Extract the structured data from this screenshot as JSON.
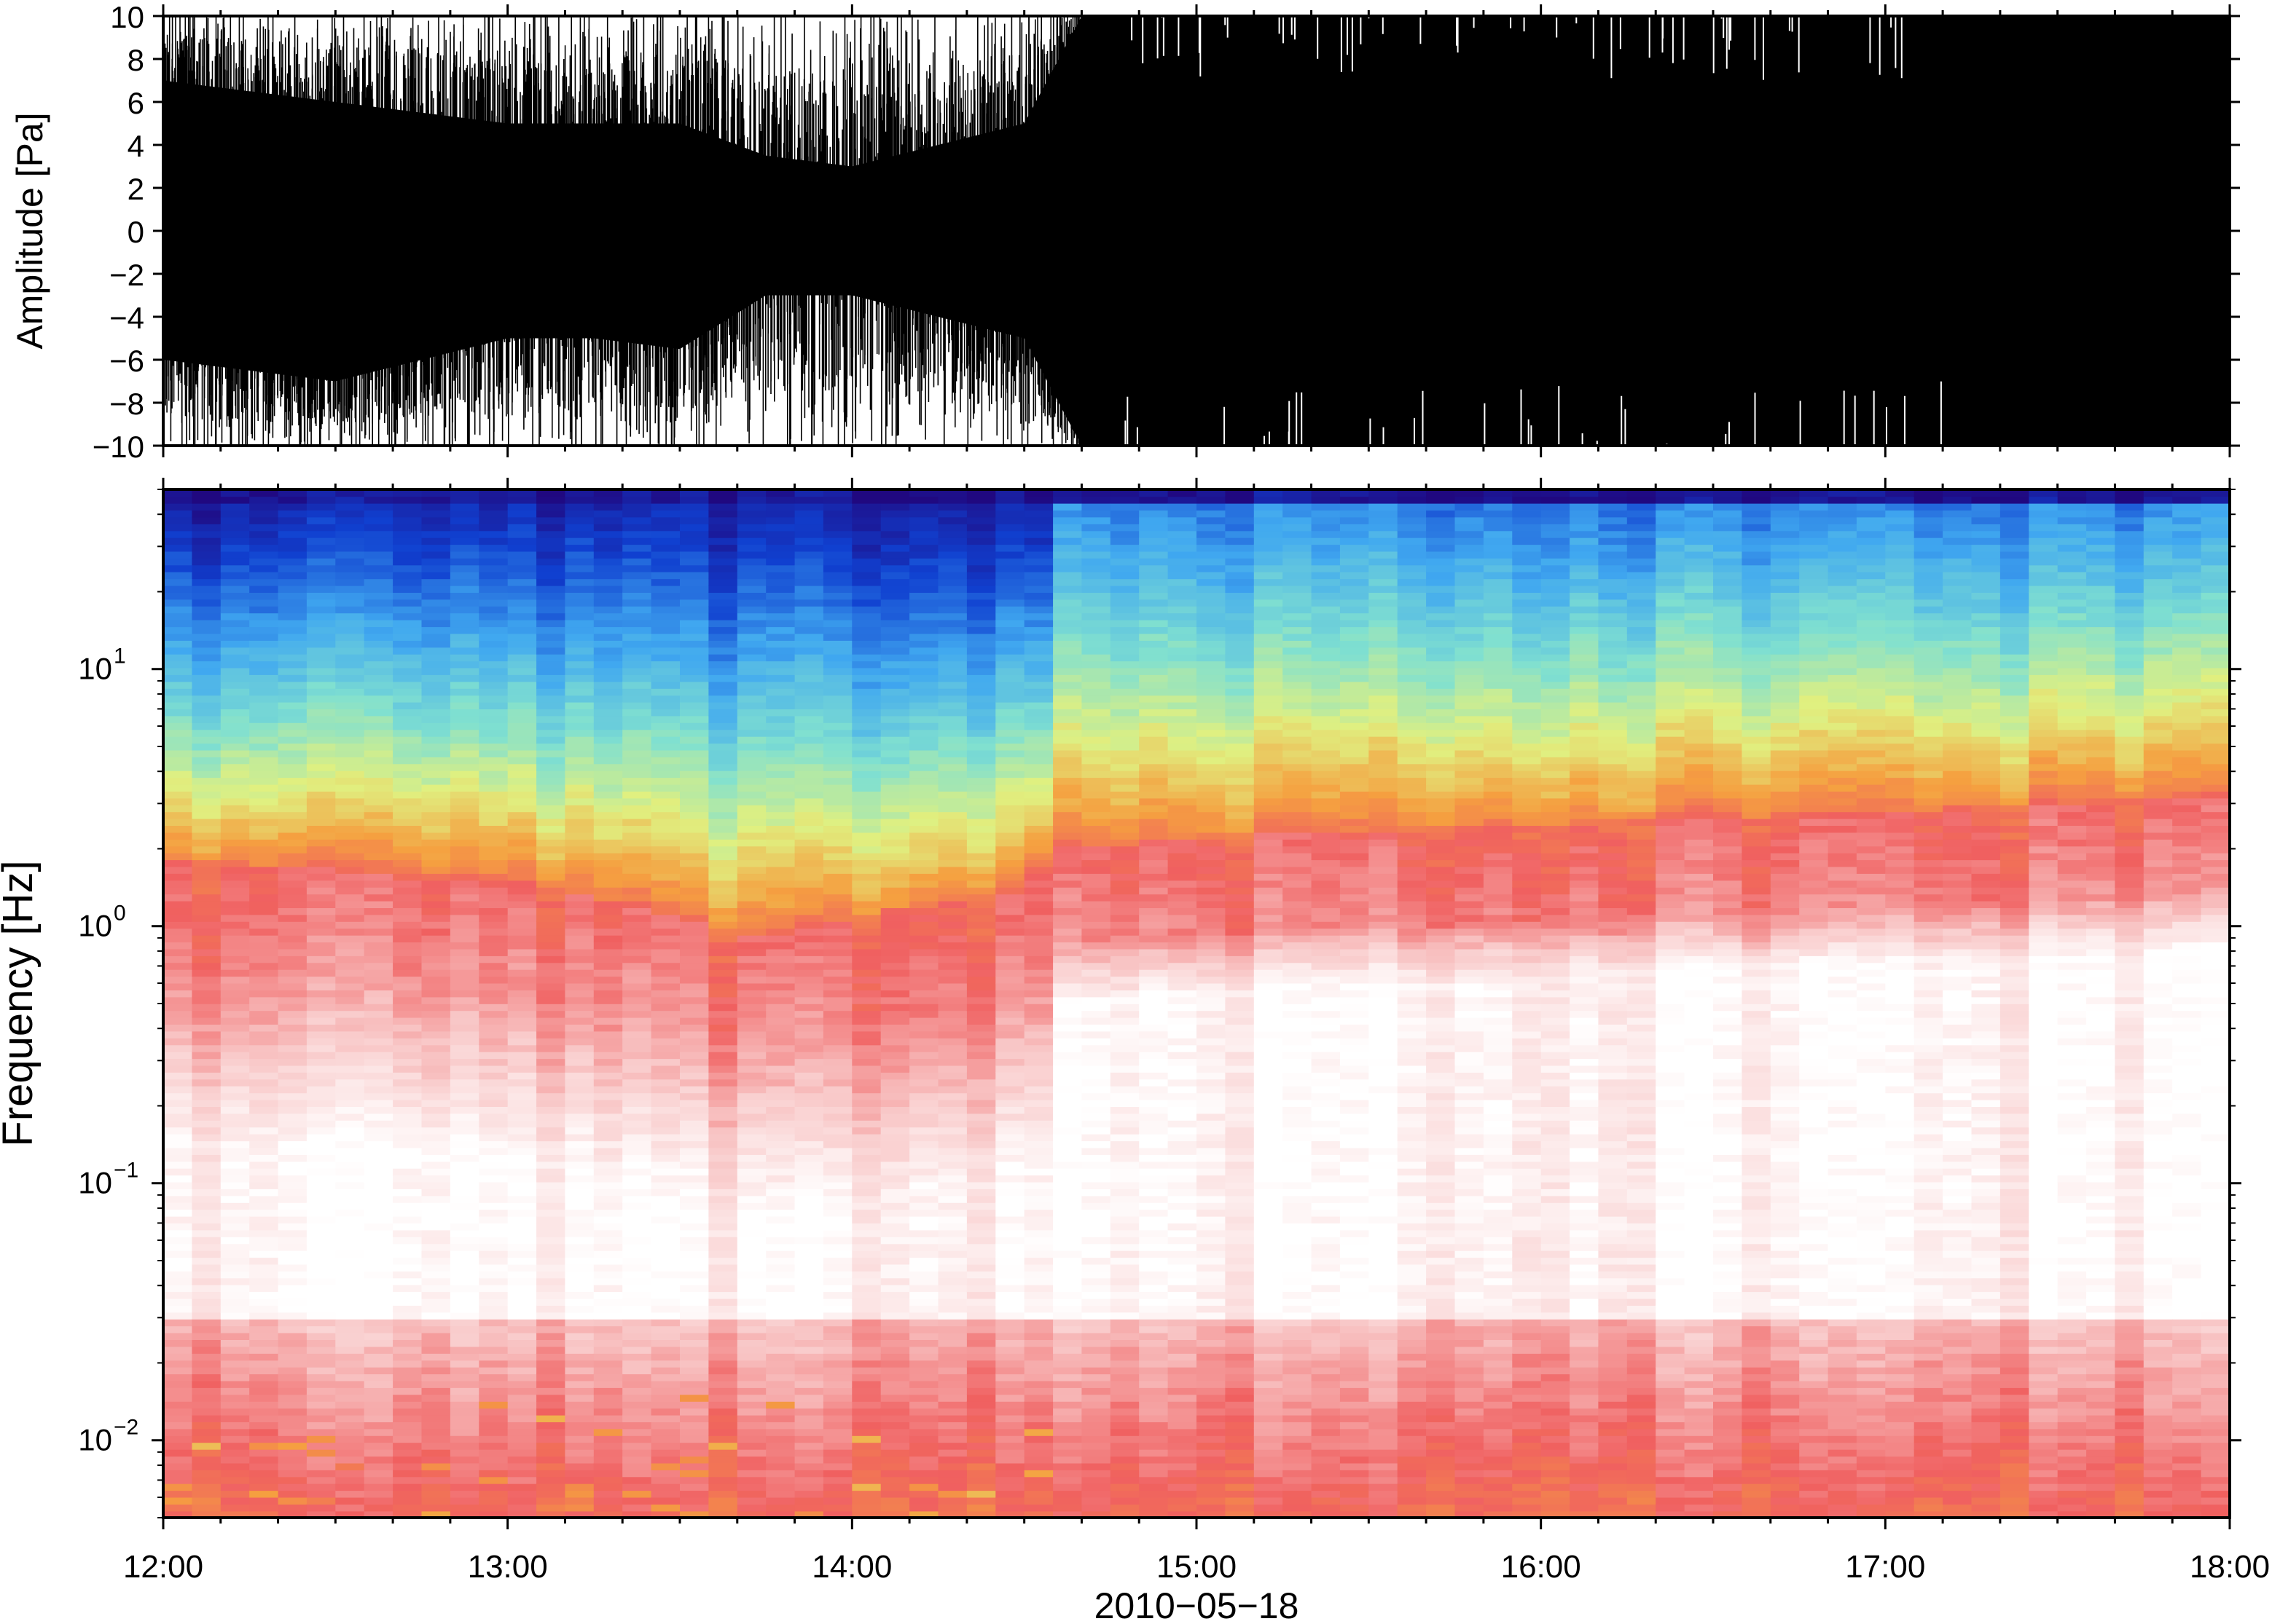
{
  "chart_data": [
    {
      "type": "line",
      "ylabel": "Amplitude [Pa]",
      "ylim": [
        -10,
        10
      ],
      "yticks": [
        "10",
        "8",
        "6",
        "4",
        "2",
        "0",
        "−2",
        "−4",
        "−6",
        "−8",
        "−10"
      ],
      "xlim": [
        "12:00",
        "18:00"
      ],
      "envelope_note": "Waveform saturates the ±10 Pa axis after ~14:30; before that envelope edges near ±4–6 Pa",
      "envelope": {
        "x": [
          "12:00",
          "12:15",
          "12:30",
          "12:45",
          "13:00",
          "13:15",
          "13:30",
          "13:45",
          "14:00",
          "14:15",
          "14:30",
          "14:40",
          "15:00",
          "16:00",
          "17:00",
          "18:00"
        ],
        "upper": [
          7,
          6.5,
          6,
          5.5,
          5,
          5,
          5,
          3.5,
          3,
          4,
          5,
          10,
          10,
          10,
          10,
          10
        ],
        "lower": [
          -6,
          -6.5,
          -7,
          -6,
          -5,
          -5,
          -5.5,
          -3,
          -3,
          -4,
          -5,
          -10,
          -10,
          -10,
          -10,
          -10
        ]
      }
    },
    {
      "type": "heatmap",
      "ylabel": "Frequency [Hz]",
      "yscale": "log",
      "ylim": [
        0.005,
        50
      ],
      "yticks": [
        {
          "value": 10,
          "base": "10",
          "exp": "1"
        },
        {
          "value": 1,
          "base": "10",
          "exp": "0"
        },
        {
          "value": 0.1,
          "base": "10",
          "exp": "−1"
        },
        {
          "value": 0.01,
          "base": "10",
          "exp": "−2"
        }
      ],
      "xlabel": "2010−05−18",
      "xticks": [
        "12:00",
        "13:00",
        "14:00",
        "15:00",
        "16:00",
        "17:00",
        "18:00"
      ],
      "colormap": [
        "#ffffff",
        "#f8c4c4",
        "#f06060",
        "#f5a040",
        "#e0f080",
        "#80e0d0",
        "#40a8f0",
        "#1040d0",
        "#200880"
      ],
      "red_band_top_hz": {
        "x": [
          "12:00",
          "13:00",
          "13:45",
          "14:30",
          "14:35",
          "15:00",
          "16:00",
          "17:00",
          "18:00"
        ],
        "values": [
          1.8,
          1.5,
          0.9,
          1.4,
          2.0,
          2.2,
          2.5,
          2.8,
          3.2
        ]
      }
    }
  ]
}
